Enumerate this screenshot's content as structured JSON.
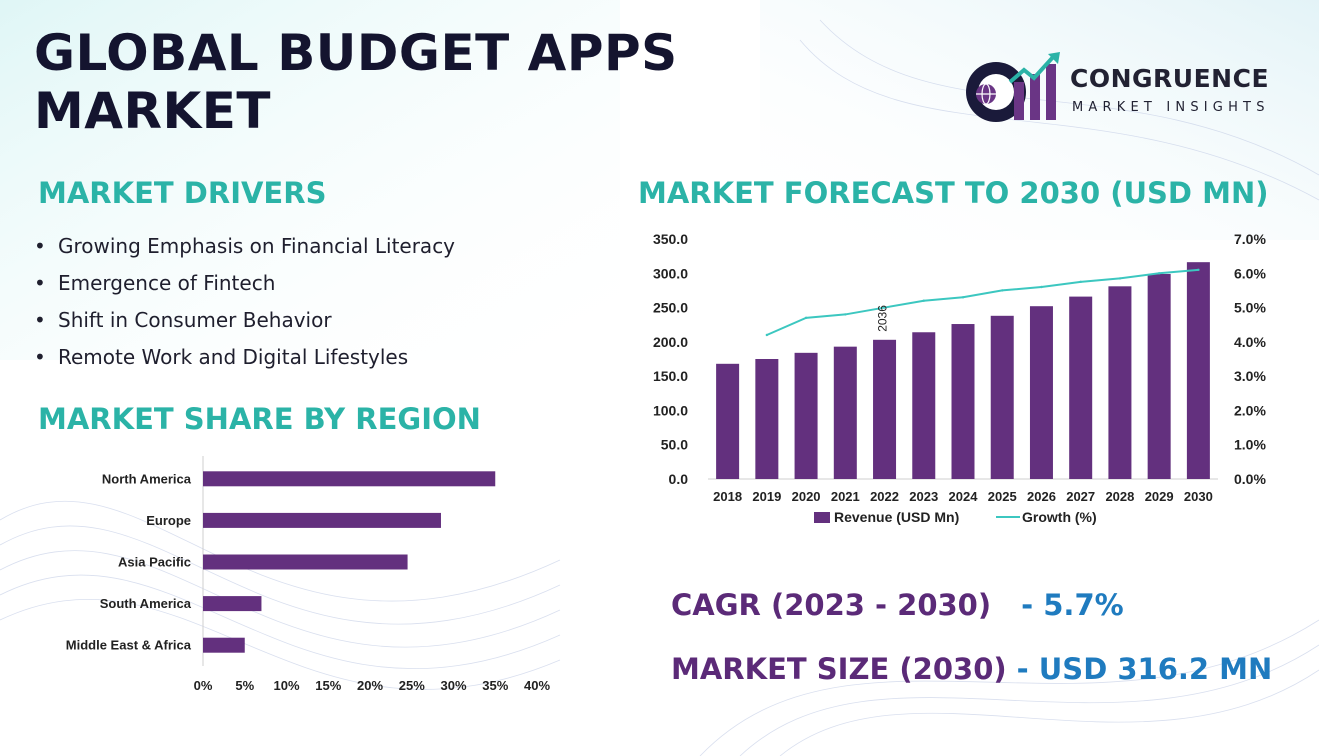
{
  "title": "GLOBAL BUDGET APPS MARKET",
  "logo": {
    "line1": "CONGRUENCE",
    "line2": "MARKET INSIGHTS"
  },
  "drivers": {
    "heading": "MARKET DRIVERS",
    "items": [
      "Growing Emphasis on Financial Literacy",
      "Emergence of Fintech",
      "Shift in Consumer Behavior",
      "Remote Work and Digital Lifestyles"
    ]
  },
  "region": {
    "heading": "MARKET SHARE BY REGION"
  },
  "forecast": {
    "heading": "MARKET FORECAST TO 2030 (USD MN)"
  },
  "stats": {
    "cagr_label": "CAGR (2023 - 2030)",
    "cagr_value": "- 5.7%",
    "size_label": "MARKET SIZE (2030)",
    "size_value": "- USD 316.2 MN"
  },
  "colors": {
    "bar": "#63307e",
    "line": "#3cc7c0",
    "heading": "#2bb3a7",
    "title": "#14142f",
    "stat_label": "#5b2a78",
    "stat_value": "#1f7bbf"
  },
  "chart_data": [
    {
      "type": "bar",
      "orientation": "horizontal",
      "title": "",
      "categories": [
        "North America",
        "Europe",
        "Asia Pacific",
        "South America",
        "Middle East & Africa"
      ],
      "values": [
        35,
        28.5,
        24.5,
        7,
        5
      ],
      "unit": "%",
      "xlim": [
        0,
        40
      ],
      "xticks": [
        "0%",
        "5%",
        "10%",
        "15%",
        "20%",
        "25%",
        "30%",
        "35%",
        "40%"
      ],
      "grid": false
    },
    {
      "type": "bar",
      "title": "",
      "categories": [
        "2018",
        "2019",
        "2020",
        "2021",
        "2022",
        "2023",
        "2024",
        "2025",
        "2026",
        "2027",
        "2028",
        "2029",
        "2030"
      ],
      "series": [
        {
          "name": "Revenue (USD Mn)",
          "type": "bar",
          "axis": "left",
          "values": [
            168,
            175,
            184,
            193,
            203,
            214,
            226,
            238,
            252,
            266,
            281,
            299,
            316.2
          ]
        },
        {
          "name": "Growth (%)",
          "type": "line",
          "axis": "right",
          "values": [
            null,
            4.2,
            4.7,
            4.8,
            5.0,
            5.2,
            5.3,
            5.5,
            5.6,
            5.75,
            5.85,
            6.0,
            6.1
          ]
        }
      ],
      "ylim_left": [
        0,
        350
      ],
      "yticks_left": [
        "0.0",
        "50.0",
        "100.0",
        "150.0",
        "200.0",
        "250.0",
        "300.0",
        "350.0"
      ],
      "ylim_right": [
        0,
        7
      ],
      "yticks_right": [
        "0.0%",
        "1.0%",
        "2.0%",
        "3.0%",
        "4.0%",
        "5.0%",
        "6.0%",
        "7.0%"
      ],
      "annotations": [
        {
          "text": "2036",
          "category": "2022"
        }
      ],
      "legend": "bottom",
      "grid": false
    }
  ]
}
